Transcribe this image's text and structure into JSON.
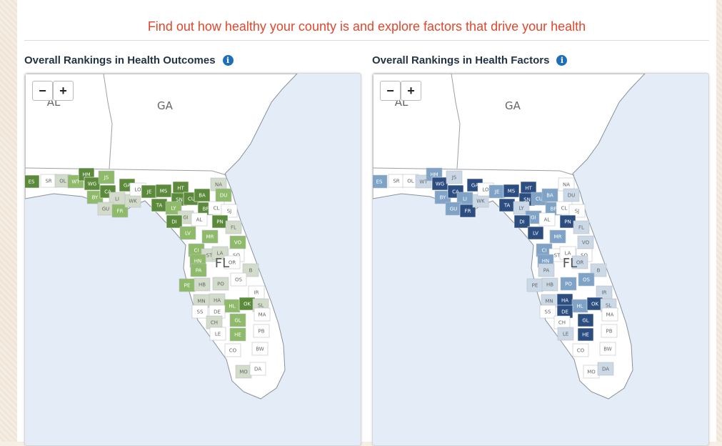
{
  "tagline": "Find out how healthy your county is and explore factors that drive your health",
  "outcomes": {
    "title": "Overall Rankings in Health Outcomes",
    "info_icon": "i"
  },
  "factors": {
    "title": "Overall Rankings in Health Factors",
    "info_icon": "i"
  },
  "zoom_controls": {
    "zoom_out": "−",
    "zoom_in": "+"
  },
  "state_labels": {
    "al": "AL",
    "ga": "GA",
    "fl": "FL"
  },
  "colors": {
    "outcomes": [
      "#ffffff",
      "#d3dccb",
      "#8fba6a",
      "#5a8a3a"
    ],
    "factors": [
      "#ffffff",
      "#cbd8e6",
      "#7ea3c7",
      "#2c4d80"
    ],
    "sea": "#e4edf7",
    "tagline": "#e2472c"
  },
  "counties": [
    {
      "code": "ES",
      "outcomes": 3,
      "factors": 2
    },
    {
      "code": "SR",
      "outcomes": 0,
      "factors": 0
    },
    {
      "code": "OL",
      "outcomes": 1,
      "factors": 0
    },
    {
      "code": "WT",
      "outcomes": 2,
      "factors": 1
    },
    {
      "code": "HM",
      "outcomes": 3,
      "factors": 2
    },
    {
      "code": "WG",
      "outcomes": 3,
      "factors": 3
    },
    {
      "code": "JS",
      "outcomes": 2,
      "factors": 1
    },
    {
      "code": "BY",
      "outcomes": 2,
      "factors": 2
    },
    {
      "code": "CA",
      "outcomes": 3,
      "factors": 3
    },
    {
      "code": "GA",
      "outcomes": 3,
      "factors": 3
    },
    {
      "code": "LI",
      "outcomes": 1,
      "factors": 2
    },
    {
      "code": "GU",
      "outcomes": 1,
      "factors": 2
    },
    {
      "code": "FR",
      "outcomes": 2,
      "factors": 3
    },
    {
      "code": "WK",
      "outcomes": 1,
      "factors": 1
    },
    {
      "code": "LO",
      "outcomes": 0,
      "factors": 0
    },
    {
      "code": "JE",
      "outcomes": 3,
      "factors": 2
    },
    {
      "code": "MS",
      "outcomes": 3,
      "factors": 3
    },
    {
      "code": "HT",
      "outcomes": 3,
      "factors": 3
    },
    {
      "code": "TA",
      "outcomes": 3,
      "factors": 3
    },
    {
      "code": "SN",
      "outcomes": 3,
      "factors": 3
    },
    {
      "code": "CU",
      "outcomes": 3,
      "factors": 2
    },
    {
      "code": "LY",
      "outcomes": 2,
      "factors": 1
    },
    {
      "code": "BA",
      "outcomes": 3,
      "factors": 2
    },
    {
      "code": "BF",
      "outcomes": 3,
      "factors": 2
    },
    {
      "code": "NA",
      "outcomes": 1,
      "factors": 0
    },
    {
      "code": "DU",
      "outcomes": 2,
      "factors": 1
    },
    {
      "code": "CL",
      "outcomes": 0,
      "factors": 0
    },
    {
      "code": "SJ",
      "outcomes": 0,
      "factors": 0
    },
    {
      "code": "GI",
      "outcomes": 1,
      "factors": 2
    },
    {
      "code": "AL",
      "outcomes": 0,
      "factors": 0
    },
    {
      "code": "PN",
      "outcomes": 3,
      "factors": 3
    },
    {
      "code": "DI",
      "outcomes": 3,
      "factors": 3
    },
    {
      "code": "FL",
      "outcomes": 1,
      "factors": 1
    },
    {
      "code": "LV",
      "outcomes": 2,
      "factors": 3
    },
    {
      "code": "MR",
      "outcomes": 2,
      "factors": 2
    },
    {
      "code": "VO",
      "outcomes": 2,
      "factors": 1
    },
    {
      "code": "CI",
      "outcomes": 2,
      "factors": 2
    },
    {
      "code": "ST",
      "outcomes": 1,
      "factors": 0
    },
    {
      "code": "LA",
      "outcomes": 1,
      "factors": 0
    },
    {
      "code": "SO",
      "outcomes": 0,
      "factors": 0
    },
    {
      "code": "OR",
      "outcomes": 0,
      "factors": 1
    },
    {
      "code": "HN",
      "outcomes": 2,
      "factors": 2
    },
    {
      "code": "PA",
      "outcomes": 2,
      "factors": 1
    },
    {
      "code": "B",
      "outcomes": 1,
      "factors": 1
    },
    {
      "code": "PE",
      "outcomes": 2,
      "factors": 1
    },
    {
      "code": "HB",
      "outcomes": 1,
      "factors": 1
    },
    {
      "code": "PO",
      "outcomes": 1,
      "factors": 2
    },
    {
      "code": "OS",
      "outcomes": 0,
      "factors": 2
    },
    {
      "code": "IR",
      "outcomes": 0,
      "factors": 1
    },
    {
      "code": "MN",
      "outcomes": 1,
      "factors": 1
    },
    {
      "code": "HA",
      "outcomes": 1,
      "factors": 3
    },
    {
      "code": "HL",
      "outcomes": 2,
      "factors": 2
    },
    {
      "code": "OK",
      "outcomes": 3,
      "factors": 3
    },
    {
      "code": "SL",
      "outcomes": 1,
      "factors": 1
    },
    {
      "code": "SS",
      "outcomes": 0,
      "factors": 0
    },
    {
      "code": "DE",
      "outcomes": 0,
      "factors": 3
    },
    {
      "code": "MA",
      "outcomes": 0,
      "factors": 0
    },
    {
      "code": "CH",
      "outcomes": 1,
      "factors": 0
    },
    {
      "code": "GL",
      "outcomes": 2,
      "factors": 3
    },
    {
      "code": "LE",
      "outcomes": 0,
      "factors": 1
    },
    {
      "code": "HE",
      "outcomes": 2,
      "factors": 3
    },
    {
      "code": "PB",
      "outcomes": 0,
      "factors": 0
    },
    {
      "code": "CO",
      "outcomes": 0,
      "factors": 0
    },
    {
      "code": "BW",
      "outcomes": 0,
      "factors": 0
    },
    {
      "code": "MO",
      "outcomes": 1,
      "factors": 0
    },
    {
      "code": "DA",
      "outcomes": 0,
      "factors": 1
    }
  ]
}
